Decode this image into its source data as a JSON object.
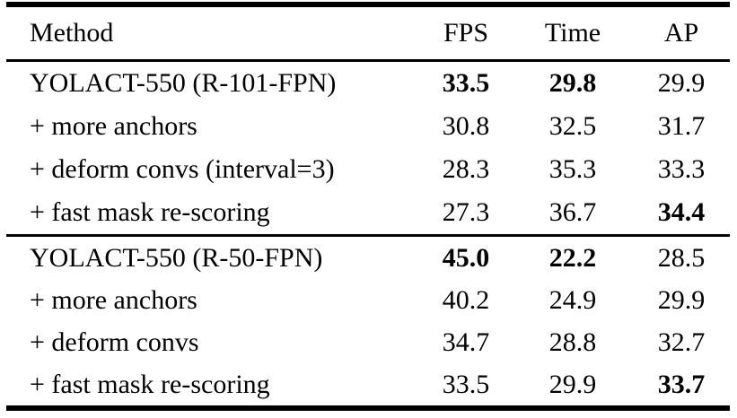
{
  "colors": {
    "text": "#000000",
    "background": "#ffffff",
    "rule": "#000000"
  },
  "table": {
    "header": {
      "method": "Method",
      "fps": "FPS",
      "time": "Time",
      "ap": "AP"
    },
    "sections": [
      {
        "rows": [
          {
            "method": "YOLACT-550 (R-101-FPN)",
            "fps": {
              "v": "33.5",
              "b": true
            },
            "time": {
              "v": "29.8",
              "b": true
            },
            "ap": {
              "v": "29.9",
              "b": false
            }
          },
          {
            "method": "+ more anchors",
            "fps": {
              "v": "30.8",
              "b": false
            },
            "time": {
              "v": "32.5",
              "b": false
            },
            "ap": {
              "v": "31.7",
              "b": false
            }
          },
          {
            "method": "+ deform convs (interval=3)",
            "fps": {
              "v": "28.3",
              "b": false
            },
            "time": {
              "v": "35.3",
              "b": false
            },
            "ap": {
              "v": "33.3",
              "b": false
            }
          },
          {
            "method": "+ fast mask re-scoring",
            "fps": {
              "v": "27.3",
              "b": false
            },
            "time": {
              "v": "36.7",
              "b": false
            },
            "ap": {
              "v": "34.4",
              "b": true
            }
          }
        ]
      },
      {
        "rows": [
          {
            "method": "YOLACT-550 (R-50-FPN)",
            "fps": {
              "v": "45.0",
              "b": true
            },
            "time": {
              "v": "22.2",
              "b": true
            },
            "ap": {
              "v": "28.5",
              "b": false
            }
          },
          {
            "method": "+ more anchors",
            "fps": {
              "v": "40.2",
              "b": false
            },
            "time": {
              "v": "24.9",
              "b": false
            },
            "ap": {
              "v": "29.9",
              "b": false
            }
          },
          {
            "method": "+ deform convs",
            "fps": {
              "v": "34.7",
              "b": false
            },
            "time": {
              "v": "28.8",
              "b": false
            },
            "ap": {
              "v": "32.7",
              "b": false
            }
          },
          {
            "method": "+ fast mask re-scoring",
            "fps": {
              "v": "33.5",
              "b": false
            },
            "time": {
              "v": "29.9",
              "b": false
            },
            "ap": {
              "v": "33.7",
              "b": true
            }
          }
        ]
      }
    ]
  }
}
